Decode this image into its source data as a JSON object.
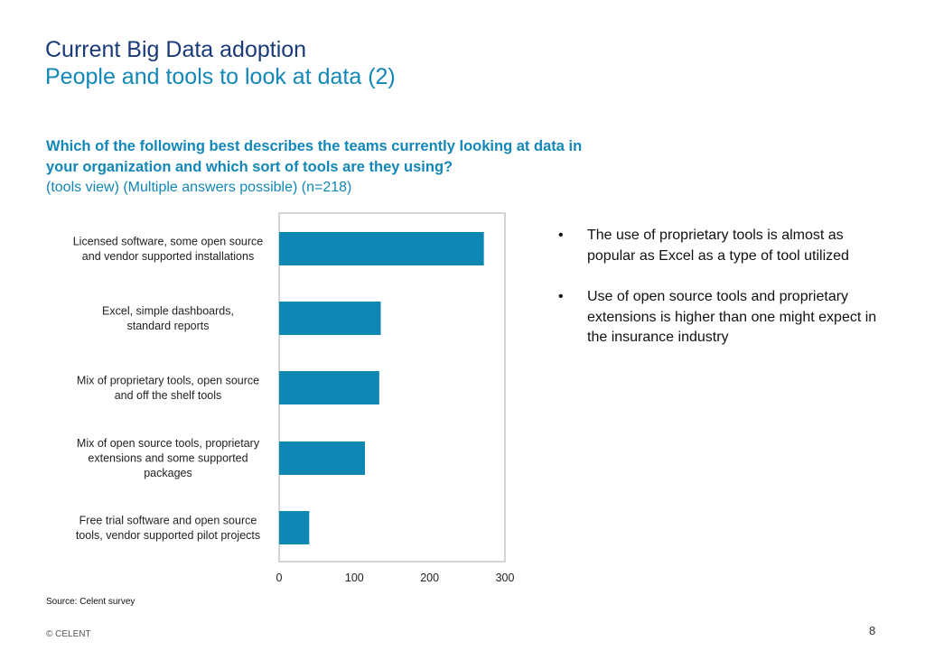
{
  "header": {
    "title": "Current Big Data adoption",
    "subtitle": "People and tools to look at data (2)"
  },
  "question": {
    "text": "Which of the following best describes the teams currently looking at data in your organization and which sort of tools are they using?",
    "subtext": "(tools view) (Multiple answers possible) (n=218)"
  },
  "chart_data": {
    "type": "bar",
    "orientation": "horizontal",
    "categories": [
      [
        "Licensed software, some open source",
        "and vendor supported installations"
      ],
      [
        "Excel, simple dashboards,",
        "standard reports"
      ],
      [
        "Mix of proprietary tools, open source",
        "and off the shelf tools"
      ],
      [
        "Mix of open source tools, proprietary",
        "extensions and some supported",
        "packages"
      ],
      [
        "Free trial software and open source",
        "tools, vendor supported pilot projects"
      ]
    ],
    "values": [
      272,
      135,
      133,
      114,
      40
    ],
    "xlim": [
      0,
      300
    ],
    "xticks": [
      "0",
      "100",
      "200",
      "300"
    ],
    "grid": false,
    "bar_color": "#0f87b4"
  },
  "bullets": [
    {
      "marker": "•",
      "text": "The use of proprietary tools is almost as popular as Excel as a type of tool utilized"
    },
    {
      "marker": "•",
      "text": "Use of open source tools and proprietary extensions is higher than one might expect in the insurance industry"
    }
  ],
  "footer": {
    "source": "Source: Celent survey",
    "copyright": "© CELENT",
    "page_number": "8"
  }
}
